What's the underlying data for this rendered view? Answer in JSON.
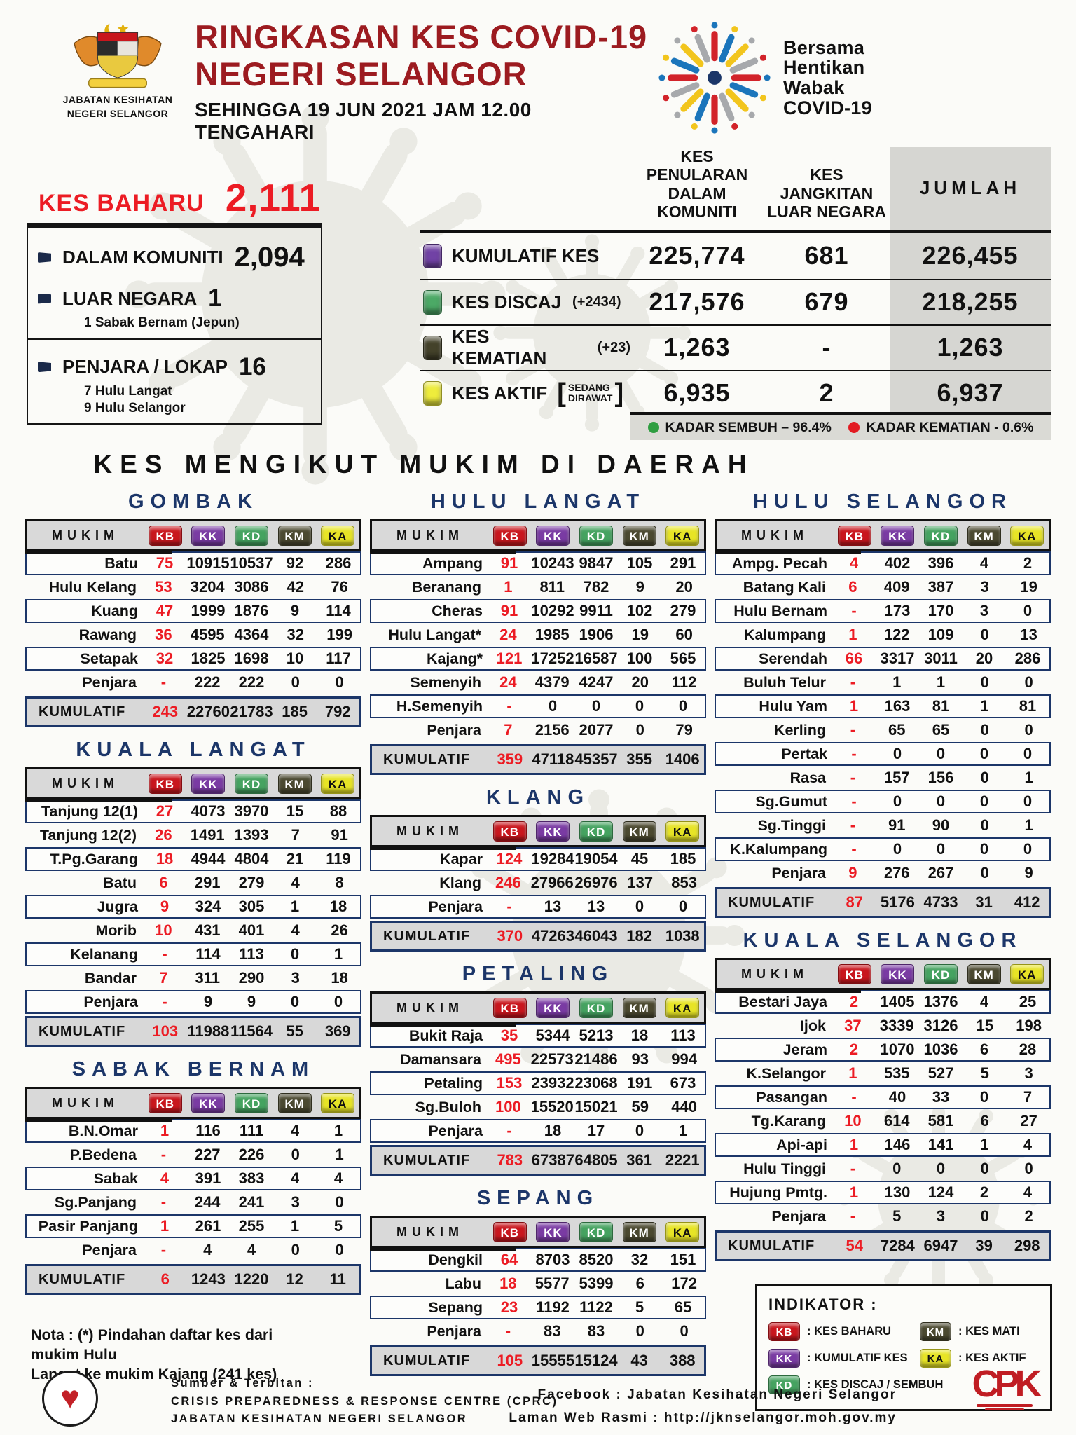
{
  "header": {
    "agency_line1": "JABATAN KESIHATAN",
    "agency_line2": "NEGERI SELANGOR",
    "title_line1": "RINGKASAN KES COVID-19",
    "title_line2": "NEGERI SELANGOR",
    "subtitle": "SEHINGGA 19 JUN 2021 JAM 12.00 TENGAHARI",
    "campaign_line1": "Bersama",
    "campaign_line2": "Hentikan",
    "campaign_line3": "Wabak",
    "campaign_line4": "COVID-19"
  },
  "new_cases": {
    "label": "KES BAHARU",
    "value": "2,111",
    "komuniti_label": "DALAM KOMUNITI",
    "komuniti_value": "2,094",
    "luar_label": "LUAR NEGARA",
    "luar_value": "1",
    "luar_note": "1 Sabak Bernam (Jepun)",
    "penjara_label": "PENJARA / LOKAP",
    "penjara_value": "16",
    "penjara_note1": "7 Hulu Langat",
    "penjara_note2": "9 Hulu Selangor"
  },
  "summary": {
    "col_headers": [
      "KES PENULARAN\nDALAM KOMUNITI",
      "KES JANGKITAN\nLUAR NEGARA",
      "JUMLAH"
    ],
    "rows": [
      {
        "label": "KUMULATIF KES",
        "extra": "",
        "icon_color": "#7142A5",
        "values": [
          "225,774",
          "681",
          "226,455"
        ]
      },
      {
        "label": "KES DISCAJ",
        "extra": "(+2434)",
        "icon_color": "#4CA966",
        "values": [
          "217,576",
          "679",
          "218,255"
        ]
      },
      {
        "label": "KES KEMATIAN",
        "extra": "(+23)",
        "icon_color": "#44422A",
        "values": [
          "1,263",
          "-",
          "1,263"
        ]
      },
      {
        "label": "KES AKTIF",
        "extra": "",
        "icon_color": "#EEEC3C",
        "bracket_open": "[",
        "bracket_lines": "SEDANG\nDIRAWAT",
        "bracket_close": "]",
        "values": [
          "6,935",
          "2",
          "6,937"
        ]
      }
    ]
  },
  "rates": {
    "sembuh": "KADAR SEMBUH – 96.4%",
    "kematian": "KADAR KEMATIAN - 0.6%"
  },
  "section_title": "KES MENGIKUT MUKIM DI DAERAH",
  "mukim_header": {
    "mukim": "MUKIM",
    "badges": [
      "KB",
      "KK",
      "KD",
      "KM",
      "KA"
    ]
  },
  "districts": [
    {
      "name": "GOMBAK",
      "rows": [
        [
          "Batu",
          "75",
          "10915",
          "10537",
          "92",
          "286"
        ],
        [
          "Hulu Kelang",
          "53",
          "3204",
          "3086",
          "42",
          "76"
        ],
        [
          "Kuang",
          "47",
          "1999",
          "1876",
          "9",
          "114"
        ],
        [
          "Rawang",
          "36",
          "4595",
          "4364",
          "32",
          "199"
        ],
        [
          "Setapak",
          "32",
          "1825",
          "1698",
          "10",
          "117"
        ],
        [
          "Penjara",
          "-",
          "222",
          "222",
          "0",
          "0"
        ]
      ],
      "kumulatif": [
        "KUMULATIF",
        "243",
        "22760",
        "21783",
        "185",
        "792"
      ]
    },
    {
      "name": "KUALA LANGAT",
      "rows": [
        [
          "Tanjung 12(1)",
          "27",
          "4073",
          "3970",
          "15",
          "88"
        ],
        [
          "Tanjung 12(2)",
          "26",
          "1491",
          "1393",
          "7",
          "91"
        ],
        [
          "T.Pg.Garang",
          "18",
          "4944",
          "4804",
          "21",
          "119"
        ],
        [
          "Batu",
          "6",
          "291",
          "279",
          "4",
          "8"
        ],
        [
          "Jugra",
          "9",
          "324",
          "305",
          "1",
          "18"
        ],
        [
          "Morib",
          "10",
          "431",
          "401",
          "4",
          "26"
        ],
        [
          "Kelanang",
          "-",
          "114",
          "113",
          "0",
          "1"
        ],
        [
          "Bandar",
          "7",
          "311",
          "290",
          "3",
          "18"
        ],
        [
          "Penjara",
          "-",
          "9",
          "9",
          "0",
          "0"
        ]
      ],
      "kumulatif": [
        "KUMULATIF",
        "103",
        "11988",
        "11564",
        "55",
        "369"
      ]
    },
    {
      "name": "SABAK BERNAM",
      "rows": [
        [
          "B.N.Omar",
          "1",
          "116",
          "111",
          "4",
          "1"
        ],
        [
          "P.Bedena",
          "-",
          "227",
          "226",
          "0",
          "1"
        ],
        [
          "Sabak",
          "4",
          "391",
          "383",
          "4",
          "4"
        ],
        [
          "Sg.Panjang",
          "-",
          "244",
          "241",
          "3",
          "0"
        ],
        [
          "Pasir Panjang",
          "1",
          "261",
          "255",
          "1",
          "5"
        ],
        [
          "Penjara",
          "-",
          "4",
          "4",
          "0",
          "0"
        ]
      ],
      "kumulatif": [
        "KUMULATIF",
        "6",
        "1243",
        "1220",
        "12",
        "11"
      ]
    },
    {
      "name": "HULU LANGAT",
      "rows": [
        [
          "Ampang",
          "91",
          "10243",
          "9847",
          "105",
          "291"
        ],
        [
          "Beranang",
          "1",
          "811",
          "782",
          "9",
          "20"
        ],
        [
          "Cheras",
          "91",
          "10292",
          "9911",
          "102",
          "279"
        ],
        [
          "Hulu Langat*",
          "24",
          "1985",
          "1906",
          "19",
          "60"
        ],
        [
          "Kajang*",
          "121",
          "17252",
          "16587",
          "100",
          "565"
        ],
        [
          "Semenyih",
          "24",
          "4379",
          "4247",
          "20",
          "112"
        ],
        [
          "H.Semenyih",
          "-",
          "0",
          "0",
          "0",
          "0"
        ],
        [
          "Penjara",
          "7",
          "2156",
          "2077",
          "0",
          "79"
        ]
      ],
      "kumulatif": [
        "KUMULATIF",
        "359",
        "47118",
        "45357",
        "355",
        "1406"
      ]
    },
    {
      "name": "KLANG",
      "rows": [
        [
          "Kapar",
          "124",
          "19284",
          "19054",
          "45",
          "185"
        ],
        [
          "Klang",
          "246",
          "27966",
          "26976",
          "137",
          "853"
        ],
        [
          "Penjara",
          "-",
          "13",
          "13",
          "0",
          "0"
        ]
      ],
      "kumulatif": [
        "KUMULATIF",
        "370",
        "47263",
        "46043",
        "182",
        "1038"
      ]
    },
    {
      "name": "PETALING",
      "rows": [
        [
          "Bukit Raja",
          "35",
          "5344",
          "5213",
          "18",
          "113"
        ],
        [
          "Damansara",
          "495",
          "22573",
          "21486",
          "93",
          "994"
        ],
        [
          "Petaling",
          "153",
          "23932",
          "23068",
          "191",
          "673"
        ],
        [
          "Sg.Buloh",
          "100",
          "15520",
          "15021",
          "59",
          "440"
        ],
        [
          "Penjara",
          "-",
          "18",
          "17",
          "0",
          "1"
        ]
      ],
      "kumulatif": [
        "KUMULATIF",
        "783",
        "67387",
        "64805",
        "361",
        "2221"
      ]
    },
    {
      "name": "SEPANG",
      "rows": [
        [
          "Dengkil",
          "64",
          "8703",
          "8520",
          "32",
          "151"
        ],
        [
          "Labu",
          "18",
          "5577",
          "5399",
          "6",
          "172"
        ],
        [
          "Sepang",
          "23",
          "1192",
          "1122",
          "5",
          "65"
        ],
        [
          "Penjara",
          "-",
          "83",
          "83",
          "0",
          "0"
        ]
      ],
      "kumulatif": [
        "KUMULATIF",
        "105",
        "15555",
        "15124",
        "43",
        "388"
      ]
    },
    {
      "name": "HULU SELANGOR",
      "rows": [
        [
          "Ampg. Pecah",
          "4",
          "402",
          "396",
          "4",
          "2"
        ],
        [
          "Batang Kali",
          "6",
          "409",
          "387",
          "3",
          "19"
        ],
        [
          "Hulu Bernam",
          "-",
          "173",
          "170",
          "3",
          "0"
        ],
        [
          "Kalumpang",
          "1",
          "122",
          "109",
          "0",
          "13"
        ],
        [
          "Serendah",
          "66",
          "3317",
          "3011",
          "20",
          "286"
        ],
        [
          "Buluh Telur",
          "-",
          "1",
          "1",
          "0",
          "0"
        ],
        [
          "Hulu Yam",
          "1",
          "163",
          "81",
          "1",
          "81"
        ],
        [
          "Kerling",
          "-",
          "65",
          "65",
          "0",
          "0"
        ],
        [
          "Pertak",
          "-",
          "0",
          "0",
          "0",
          "0"
        ],
        [
          "Rasa",
          "-",
          "157",
          "156",
          "0",
          "1"
        ],
        [
          "Sg.Gumut",
          "-",
          "0",
          "0",
          "0",
          "0"
        ],
        [
          "Sg.Tinggi",
          "-",
          "91",
          "90",
          "0",
          "1"
        ],
        [
          "K.Kalumpang",
          "-",
          "0",
          "0",
          "0",
          "0"
        ],
        [
          "Penjara",
          "9",
          "276",
          "267",
          "0",
          "9"
        ]
      ],
      "kumulatif": [
        "KUMULATIF",
        "87",
        "5176",
        "4733",
        "31",
        "412"
      ]
    },
    {
      "name": "KUALA SELANGOR",
      "rows": [
        [
          "Bestari Jaya",
          "2",
          "1405",
          "1376",
          "4",
          "25"
        ],
        [
          "Ijok",
          "37",
          "3339",
          "3126",
          "15",
          "198"
        ],
        [
          "Jeram",
          "2",
          "1070",
          "1036",
          "6",
          "28"
        ],
        [
          "K.Selangor",
          "1",
          "535",
          "527",
          "5",
          "3"
        ],
        [
          "Pasangan",
          "-",
          "40",
          "33",
          "0",
          "7"
        ],
        [
          "Tg.Karang",
          "10",
          "614",
          "581",
          "6",
          "27"
        ],
        [
          "Api-api",
          "1",
          "146",
          "141",
          "1",
          "4"
        ],
        [
          "Hulu Tinggi",
          "-",
          "0",
          "0",
          "0",
          "0"
        ],
        [
          "Hujung Pmtg.",
          "1",
          "130",
          "124",
          "2",
          "4"
        ],
        [
          "Penjara",
          "-",
          "5",
          "3",
          "0",
          "2"
        ]
      ],
      "kumulatif": [
        "KUMULATIF",
        "54",
        "7284",
        "6947",
        "39",
        "298"
      ]
    }
  ],
  "nota": {
    "line1": "Nota : (*) Pindahan daftar kes dari mukim Hulu",
    "line2": "Langat ke mukim Kajang (241 kes)"
  },
  "indicator": {
    "title": "INDIKATOR :",
    "kb": ": KES BAHARU",
    "kk": ": KUMULATIF KES",
    "kd": ": KES DISCAJ / SEMBUH",
    "km": ": KES MATI",
    "ka": ": KES AKTIF"
  },
  "footer": {
    "source_title": "Sumber & Terbitan :",
    "source_line1": "CRISIS PREPAREDNESS & RESPONSE CENTRE (CPRC)",
    "source_line2": "JABATAN KESIHATAN NEGERI SELANGOR",
    "facebook": "Facebook : Jabatan Kesihatan Negeri Selangor",
    "web": "Laman Web Rasmi : http://jknselangor.moh.gov.my",
    "cpk_text": "CPK"
  },
  "colors": {
    "title_red": "#9C1B20",
    "accent_red": "#EC1C24",
    "navy": "#1C3669",
    "sembuh_dot": "#2F9E41",
    "kematian_dot": "#E21B22",
    "badges": {
      "KB": {
        "bg": "#C9161D",
        "fg": "#FFFFFF"
      },
      "KK": {
        "bg": "#7A3BA3",
        "fg": "#FFFFFF"
      },
      "KD": {
        "bg": "#45A360",
        "fg": "#FFFFFF"
      },
      "KM": {
        "bg": "#4B4930",
        "fg": "#FFFFFF"
      },
      "KA": {
        "bg": "#E7E426",
        "fg": "#111111"
      }
    }
  }
}
